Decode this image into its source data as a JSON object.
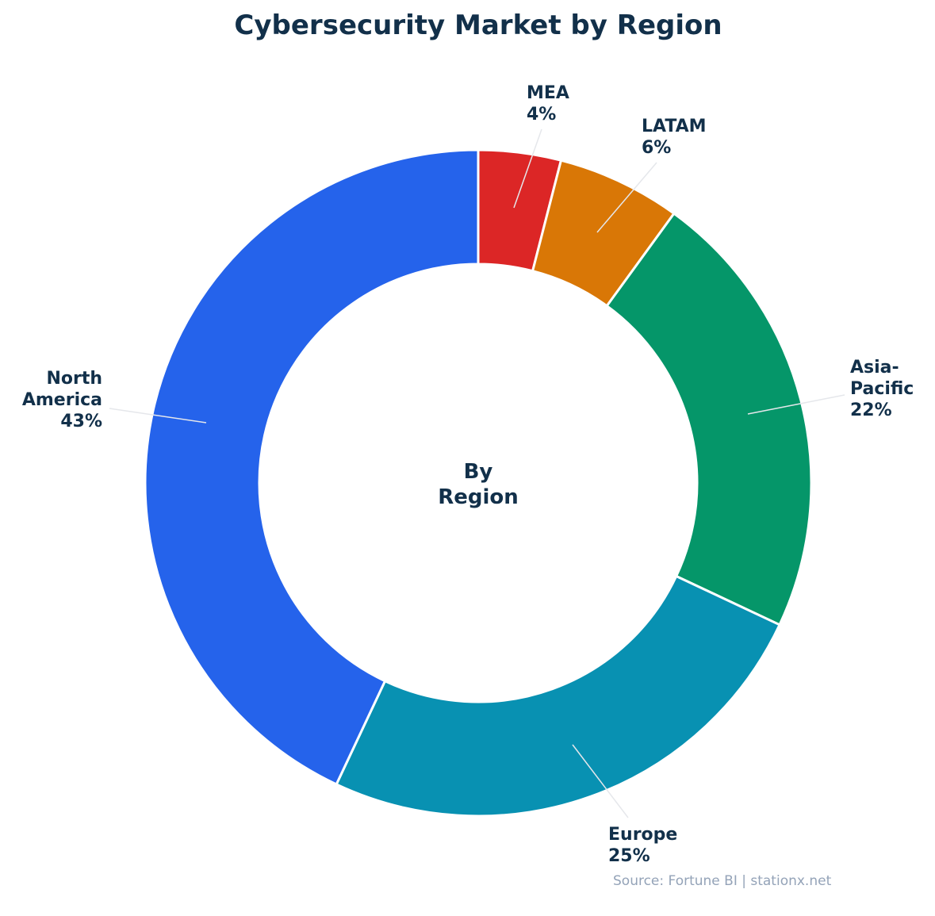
{
  "chart_data": {
    "type": "pie",
    "variant": "donut",
    "title": "Cybersecurity Market by Region",
    "center_label": "By\nRegion",
    "source": "Source: Fortune BI | stationx.net",
    "unit": "%",
    "start": "top, clockwise",
    "slices": [
      {
        "label": "MEA",
        "value": 4,
        "color": "#dc2626"
      },
      {
        "label": "LATAM",
        "value": 6,
        "color": "#d97706"
      },
      {
        "label": "Asia-Pacific",
        "value": 22,
        "color": "#059669"
      },
      {
        "label": "Europe",
        "value": 25,
        "color": "#0891b2"
      },
      {
        "label": "North America",
        "value": 43,
        "color": "#2563eb"
      }
    ],
    "text_color": "#12304a",
    "source_color": "#94a3b8"
  }
}
